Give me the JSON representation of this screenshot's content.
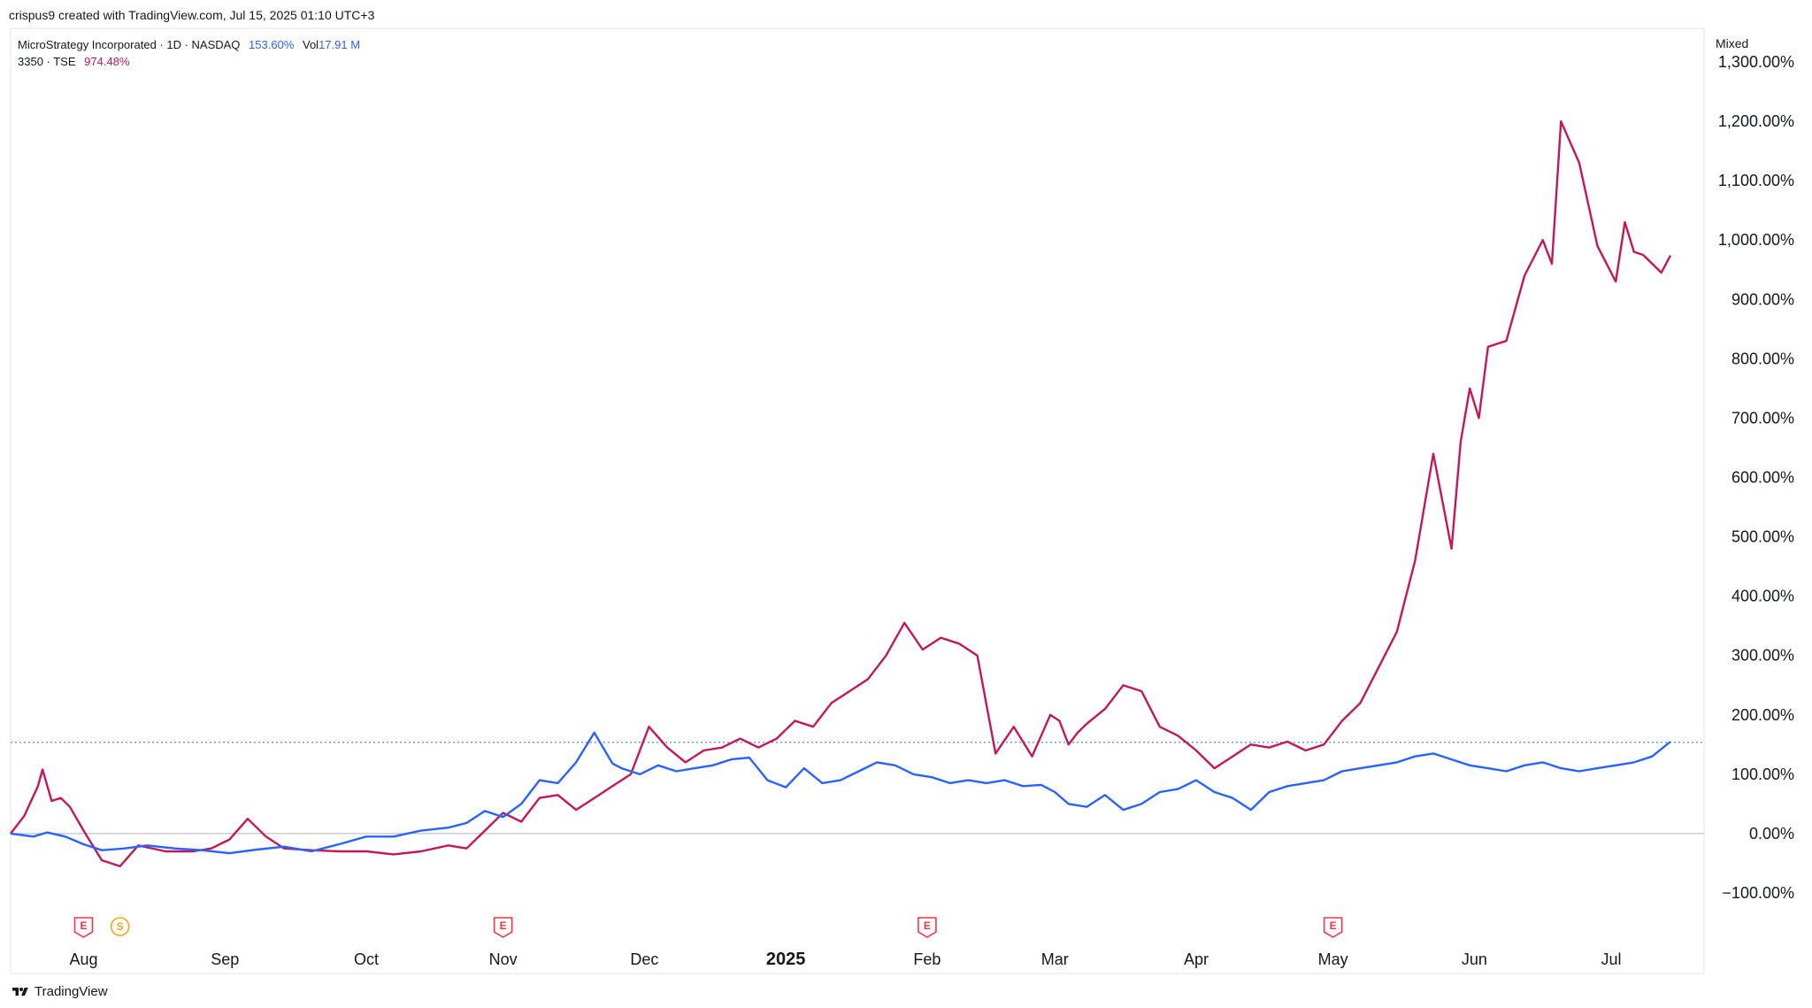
{
  "header": {
    "created_text": "crispus9 created with TradingView.com, Jul 15, 2025 01:10 UTC+3"
  },
  "legend": {
    "series_a_label": "MicroStrategy Incorporated · 1D · NASDAQ",
    "series_a_value": "153.60%",
    "series_a_vol_label": "Vol",
    "series_a_vol_value": "17.91 M",
    "series_b_label": "3350 · TSE",
    "series_b_value": "974.48%"
  },
  "scale_mode": "Mixed",
  "brand": {
    "name": "TradingView"
  },
  "colors": {
    "series_a": "#2962ff",
    "series_b": "#c2185b",
    "zero_line": "#b2b5be"
  },
  "chart_data": {
    "type": "line",
    "x_ticks": [
      "Aug",
      "Sep",
      "Oct",
      "Nov",
      "Dec",
      "2025",
      "Feb",
      "Mar",
      "Apr",
      "May",
      "Jun",
      "Jul"
    ],
    "x_tick_days": [
      16,
      47,
      78,
      108,
      139,
      170,
      201,
      229,
      260,
      290,
      321,
      351
    ],
    "y_ticks": [
      "1,300.00%",
      "1,200.00%",
      "1,100.00%",
      "1,000.00%",
      "900.00%",
      "800.00%",
      "700.00%",
      "600.00%",
      "500.00%",
      "400.00%",
      "300.00%",
      "200.00%",
      "100.00%",
      "0.00%",
      "−100.00%"
    ],
    "y_tick_values": [
      1300,
      1200,
      1100,
      1000,
      900,
      800,
      700,
      600,
      500,
      400,
      300,
      200,
      100,
      0,
      -100
    ],
    "ylim": [
      -100,
      1300
    ],
    "xlim": [
      0,
      364
    ],
    "series": [
      {
        "name": "MicroStrategy Incorporated · 1D · NASDAQ",
        "x": [
          0,
          5,
          8,
          12,
          16,
          20,
          25,
          30,
          36,
          42,
          48,
          54,
          60,
          66,
          72,
          78,
          84,
          90,
          96,
          100,
          104,
          108,
          112,
          116,
          120,
          124,
          128,
          132,
          134,
          138,
          142,
          146,
          150,
          154,
          158,
          162,
          166,
          170,
          174,
          178,
          182,
          186,
          190,
          194,
          198,
          202,
          206,
          210,
          214,
          218,
          222,
          226,
          229,
          232,
          236,
          240,
          244,
          248,
          252,
          256,
          260,
          264,
          268,
          272,
          276,
          280,
          284,
          288,
          292,
          296,
          300,
          304,
          308,
          312,
          316,
          320,
          324,
          328,
          332,
          336,
          340,
          344,
          348,
          352,
          356,
          360,
          364
        ],
        "values": [
          0,
          -5,
          2,
          -5,
          -18,
          -28,
          -25,
          -20,
          -25,
          -28,
          -33,
          -27,
          -22,
          -30,
          -18,
          -5,
          -5,
          5,
          10,
          18,
          38,
          28,
          50,
          90,
          85,
          120,
          170,
          118,
          110,
          100,
          115,
          105,
          110,
          115,
          125,
          128,
          90,
          78,
          110,
          85,
          90,
          105,
          120,
          115,
          100,
          95,
          85,
          90,
          85,
          90,
          80,
          82,
          70,
          50,
          45,
          65,
          40,
          50,
          70,
          75,
          90,
          70,
          60,
          40,
          70,
          80,
          85,
          90,
          105,
          110,
          115,
          120,
          130,
          135,
          125,
          115,
          110,
          105,
          115,
          120,
          110,
          105,
          110,
          115,
          120,
          130,
          155
        ]
      },
      {
        "name": "3350 · TSE",
        "x": [
          0,
          3,
          6,
          7,
          9,
          11,
          13,
          16,
          20,
          24,
          28,
          34,
          40,
          44,
          48,
          52,
          56,
          60,
          66,
          72,
          78,
          84,
          90,
          96,
          100,
          104,
          108,
          112,
          116,
          120,
          124,
          128,
          132,
          136,
          140,
          144,
          148,
          152,
          156,
          160,
          164,
          168,
          172,
          176,
          180,
          184,
          188,
          192,
          196,
          200,
          204,
          208,
          212,
          216,
          220,
          224,
          228,
          230,
          232,
          234,
          236,
          240,
          244,
          248,
          252,
          256,
          260,
          264,
          268,
          272,
          276,
          280,
          284,
          288,
          292,
          296,
          300,
          304,
          308,
          312,
          316,
          318,
          320,
          322,
          324,
          328,
          332,
          336,
          338,
          340,
          344,
          348,
          352,
          354,
          356,
          358,
          360,
          362,
          364
        ],
        "values": [
          0,
          30,
          80,
          108,
          55,
          60,
          45,
          5,
          -45,
          -55,
          -20,
          -30,
          -30,
          -25,
          -10,
          25,
          -5,
          -25,
          -28,
          -30,
          -30,
          -35,
          -30,
          -20,
          -25,
          5,
          35,
          20,
          60,
          65,
          40,
          60,
          80,
          100,
          180,
          145,
          120,
          140,
          145,
          160,
          145,
          160,
          190,
          180,
          220,
          240,
          260,
          300,
          355,
          310,
          330,
          320,
          300,
          135,
          180,
          130,
          200,
          190,
          150,
          170,
          185,
          210,
          250,
          240,
          180,
          165,
          140,
          110,
          130,
          150,
          145,
          155,
          140,
          150,
          190,
          220,
          280,
          340,
          460,
          640,
          480,
          660,
          750,
          700,
          820,
          830,
          940,
          1000,
          960,
          1200,
          1130,
          990,
          930,
          1030,
          980,
          975,
          960,
          945,
          974
        ]
      }
    ],
    "annotations": {
      "earnings_markers_days": [
        16,
        108,
        201,
        290
      ],
      "earnings_label": "E",
      "dividend_markers_days": [
        24
      ],
      "dividend_label": "S",
      "current_level_line": 153.6
    }
  }
}
